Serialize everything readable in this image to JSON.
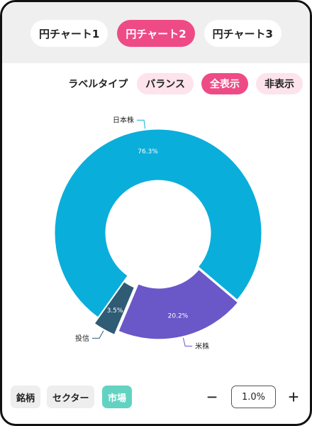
{
  "tabs": [
    {
      "label": "円チャート1",
      "active": false
    },
    {
      "label": "円チャート2",
      "active": true
    },
    {
      "label": "円チャート3",
      "active": false
    }
  ],
  "label_type": {
    "title": "ラベルタイプ",
    "options": [
      {
        "label": "バランス",
        "active": false
      },
      {
        "label": "全表示",
        "active": true
      },
      {
        "label": "非表示",
        "active": false
      }
    ]
  },
  "chart_data": {
    "type": "pie",
    "categories": [
      "日本株",
      "米株",
      "投信"
    ],
    "values": [
      76.3,
      20.2,
      3.5
    ],
    "percent_labels": [
      "76.3%",
      "20.2%",
      "3.5%"
    ],
    "colors": [
      "#0aaedb",
      "#6a57c8",
      "#2f5b74"
    ],
    "donut": true
  },
  "bottom": {
    "segments": [
      {
        "label": "銘柄",
        "active": false
      },
      {
        "label": "セクター",
        "active": false
      },
      {
        "label": "市場",
        "active": true
      }
    ],
    "zoom": {
      "minus": "−",
      "value": "1.0%",
      "plus": "+"
    }
  }
}
